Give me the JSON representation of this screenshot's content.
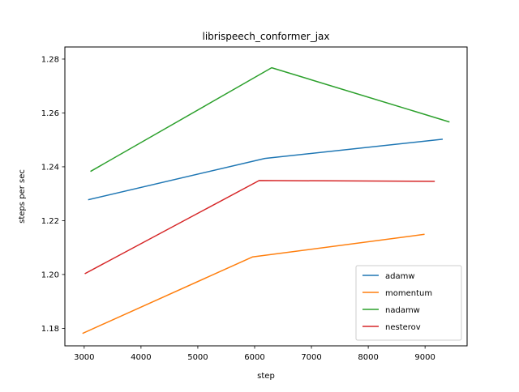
{
  "chart_data": {
    "type": "line",
    "title": "librispeech_conformer_jax",
    "xlabel": "step",
    "ylabel": "steps per sec",
    "xlim": [
      2660,
      9740
    ],
    "ylim": [
      1.1735,
      1.2845
    ],
    "xticks": [
      3000,
      4000,
      5000,
      6000,
      7000,
      8000,
      9000
    ],
    "xtick_labels": [
      "3000",
      "4000",
      "5000",
      "6000",
      "7000",
      "8000",
      "9000"
    ],
    "yticks": [
      1.18,
      1.2,
      1.22,
      1.24,
      1.26,
      1.28
    ],
    "ytick_labels": [
      "1.18",
      "1.20",
      "1.22",
      "1.24",
      "1.26",
      "1.28"
    ],
    "grid": false,
    "legend_position": "lower-right",
    "series": [
      {
        "name": "adamw",
        "color": "#1f77b4",
        "x": [
          3080,
          6180,
          9300
        ],
        "y": [
          1.2278,
          1.2431,
          1.2502
        ]
      },
      {
        "name": "momentum",
        "color": "#ff7f0e",
        "x": [
          2980,
          5960,
          8980
        ],
        "y": [
          1.1782,
          1.2065,
          1.2149
        ]
      },
      {
        "name": "nadamw",
        "color": "#2ca02c",
        "x": [
          3120,
          6300,
          9420
        ],
        "y": [
          1.2384,
          1.2768,
          1.2567
        ]
      },
      {
        "name": "nesterov",
        "color": "#d62728",
        "x": [
          3020,
          6080,
          9160
        ],
        "y": [
          1.2004,
          1.2349,
          1.2346
        ]
      }
    ]
  }
}
